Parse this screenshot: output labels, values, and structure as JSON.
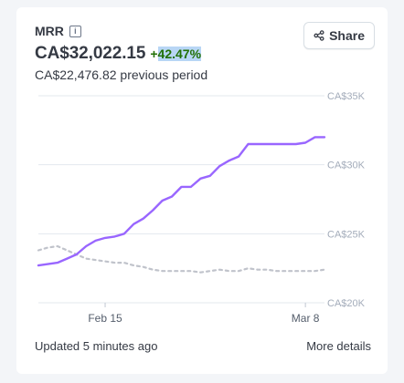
{
  "header": {
    "metric_name": "MRR",
    "info_icon": "info-icon",
    "value": "CA$32,022.15",
    "delta_sign": "+",
    "delta_value": "42.47%",
    "previous_text": "CA$22,476.82 previous period",
    "share_label": "Share",
    "share_icon": "share-icon"
  },
  "colors": {
    "current_series": "#9966ff",
    "previous_series": "#c0c3cb",
    "delta_positive": "#217005",
    "gridline": "#e3e8ee"
  },
  "chart_data": {
    "type": "line",
    "title": "",
    "xlabel": "",
    "ylabel": "",
    "x_tick_labels": [
      "Feb 15",
      "Mar 8"
    ],
    "y_tick_labels": [
      "CA$35K",
      "CA$30K",
      "CA$25K",
      "CA$20K"
    ],
    "ylim": [
      20000,
      35000
    ],
    "grid": true,
    "y_axis_position": "right",
    "x_tick_days": [
      7,
      28
    ],
    "series": [
      {
        "style": "solid",
        "x_days": [
          0,
          1,
          2,
          3,
          4,
          5,
          6,
          7,
          8,
          9,
          10,
          11,
          12,
          13,
          14,
          15,
          16,
          17,
          18,
          19,
          20,
          21,
          22,
          23,
          24,
          25,
          26,
          27,
          28,
          29,
          30
        ],
        "values": [
          22700,
          22800,
          22900,
          23200,
          23500,
          24100,
          24500,
          24700,
          24800,
          25000,
          25700,
          26100,
          26700,
          27400,
          27700,
          28400,
          28400,
          29000,
          29200,
          29900,
          30300,
          30600,
          31500,
          31500,
          31500,
          31500,
          31500,
          31500,
          31600,
          32000,
          32000
        ]
      },
      {
        "style": "dashed",
        "x_days": [
          0,
          1,
          2,
          3,
          4,
          5,
          6,
          7,
          8,
          9,
          10,
          11,
          12,
          13,
          14,
          15,
          16,
          17,
          18,
          19,
          20,
          21,
          22,
          23,
          24,
          25,
          26,
          27,
          28,
          29,
          30
        ],
        "values": [
          23800,
          24000,
          24100,
          23800,
          23500,
          23200,
          23100,
          23000,
          22900,
          22900,
          22700,
          22600,
          22400,
          22300,
          22300,
          22300,
          22300,
          22200,
          22300,
          22400,
          22300,
          22300,
          22500,
          22400,
          22400,
          22300,
          22300,
          22300,
          22300,
          22300,
          22400
        ]
      }
    ]
  },
  "footer": {
    "updated_text": "Updated 5 minutes ago",
    "details_link": "More details"
  }
}
